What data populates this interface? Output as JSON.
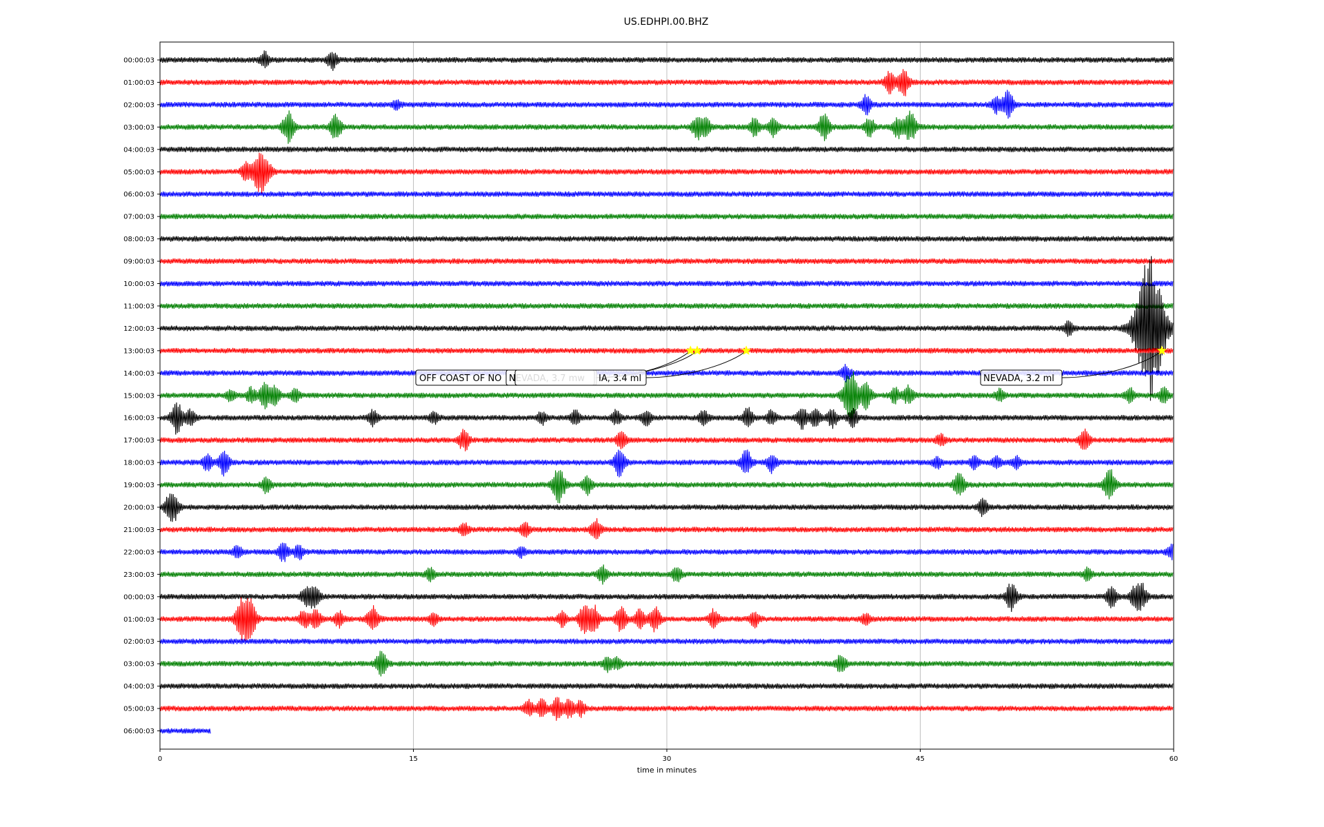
{
  "chart_data": {
    "type": "line",
    "title": "US.EDHPI.00.BHZ",
    "xlabel": "time in minutes",
    "ylabel": "",
    "xlim": [
      0,
      60
    ],
    "x_ticks": [
      "0",
      "15",
      "30",
      "45",
      "60"
    ],
    "x_tick_values": [
      0,
      15,
      30,
      45,
      60
    ],
    "grid": "vertical",
    "line_colors": [
      "#000000",
      "#ff0000",
      "#0000ff",
      "#008000"
    ],
    "highlight_color": "#ffff00",
    "rows": [
      {
        "label": "00:00:03",
        "bursts": [
          [
            6.2,
            0.5
          ],
          [
            10.2,
            0.6
          ]
        ]
      },
      {
        "label": "01:00:03",
        "bursts": [
          [
            43.2,
            0.7
          ],
          [
            44.0,
            0.9
          ]
        ]
      },
      {
        "label": "02:00:03",
        "bursts": [
          [
            14.0,
            0.3
          ],
          [
            41.8,
            0.6
          ],
          [
            49.5,
            0.5
          ],
          [
            50.2,
            0.9
          ]
        ]
      },
      {
        "label": "03:00:03",
        "bursts": [
          [
            7.6,
            1.0
          ],
          [
            10.4,
            0.9
          ],
          [
            31.8,
            0.7
          ],
          [
            32.3,
            0.6
          ],
          [
            35.2,
            0.6
          ],
          [
            36.3,
            0.6
          ],
          [
            39.3,
            0.9
          ],
          [
            42.0,
            0.6
          ],
          [
            43.7,
            0.7
          ],
          [
            44.4,
            1.0
          ]
        ]
      },
      {
        "label": "04:00:03",
        "bursts": []
      },
      {
        "label": "05:00:03",
        "bursts": [
          [
            5.1,
            0.6
          ],
          [
            5.9,
            1.4
          ],
          [
            6.4,
            0.5
          ]
        ]
      },
      {
        "label": "06:00:03",
        "bursts": []
      },
      {
        "label": "07:00:03",
        "bursts": []
      },
      {
        "label": "08:00:03",
        "bursts": []
      },
      {
        "label": "09:00:03",
        "bursts": []
      },
      {
        "label": "10:00:03",
        "bursts": []
      },
      {
        "label": "11:00:03",
        "bursts": []
      },
      {
        "label": "12:00:03",
        "bursts": [
          [
            53.8,
            0.5
          ],
          [
            58.6,
            4.7
          ]
        ]
      },
      {
        "label": "13:00:03",
        "bursts": []
      },
      {
        "label": "14:00:03",
        "bursts": [
          [
            40.6,
            0.5
          ]
        ]
      },
      {
        "label": "15:00:03",
        "bursts": [
          [
            4.2,
            0.4
          ],
          [
            5.4,
            0.5
          ],
          [
            6.2,
            0.8
          ],
          [
            6.8,
            0.6
          ],
          [
            8.0,
            0.4
          ],
          [
            40.9,
            1.8
          ],
          [
            41.8,
            0.8
          ],
          [
            43.5,
            0.5
          ],
          [
            44.3,
            0.6
          ],
          [
            49.7,
            0.4
          ],
          [
            57.4,
            0.5
          ],
          [
            59.4,
            0.5
          ]
        ]
      },
      {
        "label": "16:00:03",
        "bursts": [
          [
            1.0,
            1.0
          ],
          [
            1.8,
            0.5
          ],
          [
            12.6,
            0.5
          ],
          [
            16.2,
            0.4
          ],
          [
            22.6,
            0.4
          ],
          [
            24.6,
            0.5
          ],
          [
            27.0,
            0.5
          ],
          [
            28.8,
            0.5
          ],
          [
            32.2,
            0.5
          ],
          [
            34.8,
            0.6
          ],
          [
            36.2,
            0.5
          ],
          [
            38.0,
            0.7
          ],
          [
            38.8,
            0.6
          ],
          [
            39.8,
            0.6
          ],
          [
            41.0,
            0.6
          ]
        ]
      },
      {
        "label": "17:00:03",
        "bursts": [
          [
            18.0,
            0.7
          ],
          [
            27.3,
            0.6
          ],
          [
            46.2,
            0.4
          ],
          [
            54.7,
            0.7
          ]
        ]
      },
      {
        "label": "18:00:03",
        "bursts": [
          [
            2.8,
            0.5
          ],
          [
            3.8,
            0.8
          ],
          [
            27.2,
            0.9
          ],
          [
            34.7,
            0.8
          ],
          [
            36.2,
            0.6
          ],
          [
            46.0,
            0.4
          ],
          [
            48.2,
            0.4
          ],
          [
            49.5,
            0.4
          ],
          [
            50.7,
            0.4
          ]
        ]
      },
      {
        "label": "19:00:03",
        "bursts": [
          [
            6.3,
            0.5
          ],
          [
            23.6,
            1.2
          ],
          [
            25.3,
            0.6
          ],
          [
            47.3,
            0.8
          ],
          [
            56.2,
            1.0
          ]
        ]
      },
      {
        "label": "20:00:03",
        "bursts": [
          [
            0.7,
            1.2
          ],
          [
            48.7,
            0.5
          ]
        ]
      },
      {
        "label": "21:00:03",
        "bursts": [
          [
            18.0,
            0.4
          ],
          [
            21.6,
            0.5
          ],
          [
            25.8,
            0.7
          ]
        ]
      },
      {
        "label": "22:00:03",
        "bursts": [
          [
            4.6,
            0.4
          ],
          [
            7.3,
            0.6
          ],
          [
            8.2,
            0.5
          ],
          [
            21.4,
            0.3
          ],
          [
            59.9,
            0.5
          ]
        ]
      },
      {
        "label": "23:00:03",
        "bursts": [
          [
            16.0,
            0.4
          ],
          [
            26.2,
            0.6
          ],
          [
            30.6,
            0.5
          ],
          [
            54.9,
            0.4
          ]
        ]
      },
      {
        "label": "00:00:03",
        "bursts": [
          [
            8.6,
            0.5
          ],
          [
            9.1,
            0.8
          ],
          [
            50.4,
            0.9
          ],
          [
            56.3,
            0.7
          ],
          [
            57.7,
            0.6
          ],
          [
            58.1,
            0.8
          ]
        ]
      },
      {
        "label": "01:00:03",
        "bursts": [
          [
            4.9,
            1.4
          ],
          [
            5.4,
            1.0
          ],
          [
            8.5,
            0.6
          ],
          [
            9.2,
            0.7
          ],
          [
            10.6,
            0.5
          ],
          [
            12.6,
            0.8
          ],
          [
            16.2,
            0.4
          ],
          [
            23.8,
            0.5
          ],
          [
            25.1,
            0.9
          ],
          [
            25.7,
            0.8
          ],
          [
            27.3,
            0.8
          ],
          [
            28.4,
            0.7
          ],
          [
            29.3,
            0.8
          ],
          [
            32.8,
            0.6
          ],
          [
            35.2,
            0.5
          ],
          [
            41.8,
            0.4
          ]
        ]
      },
      {
        "label": "02:00:03",
        "bursts": []
      },
      {
        "label": "03:00:03",
        "bursts": [
          [
            13.1,
            0.8
          ],
          [
            26.5,
            0.5
          ],
          [
            27.1,
            0.4
          ],
          [
            40.3,
            0.6
          ]
        ]
      },
      {
        "label": "04:00:03",
        "bursts": []
      },
      {
        "label": "05:00:03",
        "bursts": [
          [
            21.8,
            0.5
          ],
          [
            22.6,
            0.6
          ],
          [
            23.5,
            0.7
          ],
          [
            24.2,
            0.6
          ],
          [
            24.9,
            0.5
          ]
        ]
      },
      {
        "label": "06:00:03",
        "bursts": [],
        "end_minute": 3.0
      }
    ],
    "events": [
      {
        "label": "OFF COAST OF NO",
        "minute": 31.4,
        "row": 13
      },
      {
        "label": "NEVADA, 3.7 mw",
        "minute": 31.8,
        "row": 13
      },
      {
        "label": "IA, 3.4 ml",
        "minute": 34.7,
        "row": 13
      },
      {
        "label": "NEVADA, 3.2 ml",
        "minute": 59.3,
        "row": 13
      }
    ]
  }
}
